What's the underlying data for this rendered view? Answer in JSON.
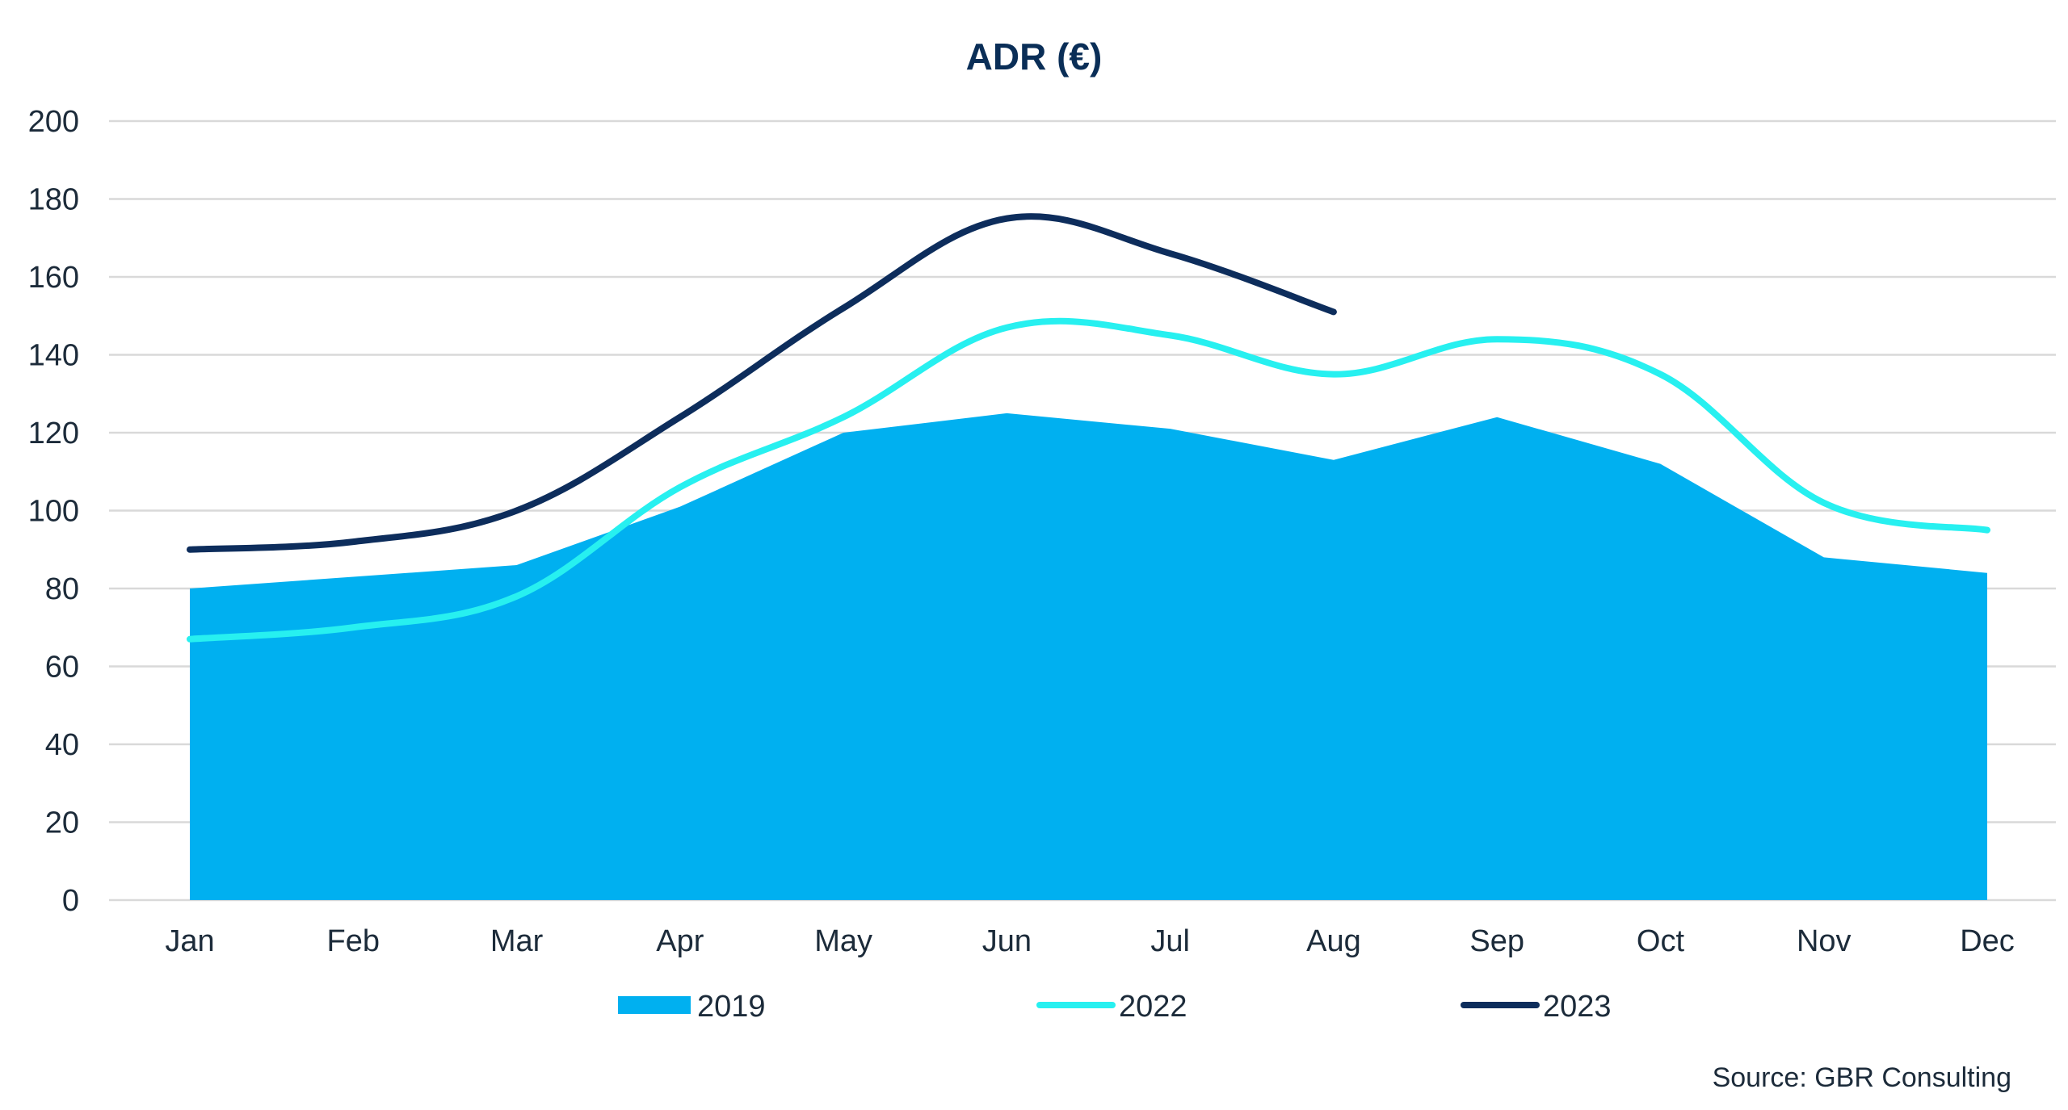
{
  "chart_data": {
    "type": "area",
    "title": "ADR (€)",
    "categories": [
      "Jan",
      "Feb",
      "Mar",
      "Apr",
      "May",
      "Jun",
      "Jul",
      "Aug",
      "Sep",
      "Oct",
      "Nov",
      "Dec"
    ],
    "ylim": [
      0,
      200
    ],
    "yticks": [
      "0",
      "20",
      "40",
      "60",
      "80",
      "100",
      "120",
      "140",
      "160",
      "180",
      "200"
    ],
    "grid": true,
    "legend_position": "bottom",
    "series": [
      {
        "name": "2019",
        "kind": "area",
        "color": "#00b0f0",
        "values": [
          80,
          83,
          86,
          101,
          120,
          125,
          121,
          113,
          124,
          112,
          88,
          84
        ]
      },
      {
        "name": "2022",
        "kind": "line",
        "color": "#27f0f0",
        "values": [
          67,
          70,
          78,
          106,
          124,
          147,
          145,
          135,
          144,
          135,
          102,
          95
        ]
      },
      {
        "name": "2023",
        "kind": "line",
        "color": "#0d2d5c",
        "values": [
          90,
          92,
          100,
          124,
          152,
          175,
          166,
          151,
          null,
          null,
          null,
          null
        ]
      }
    ]
  },
  "source": "Source: GBR Consulting"
}
